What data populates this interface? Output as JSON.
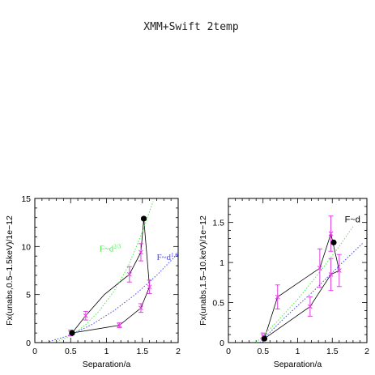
{
  "figure_title": "XMM+Swift 2temp",
  "chart_data": [
    {
      "type": "line",
      "xlabel": "Separation/a",
      "ylabel": "Fx(unabs,0.5–1.5keV)/1e−12",
      "xlim": [
        0,
        2
      ],
      "ylim": [
        0,
        15
      ],
      "xticks": [
        "0",
        "0.5",
        "1",
        "1.5",
        "2"
      ],
      "yticks": [
        "0",
        "5",
        "10",
        "15"
      ],
      "ytick_values": [
        0,
        5,
        10,
        15
      ],
      "grid": false,
      "series": [
        {
          "role": "data_path",
          "color": "#000000",
          "x": [
            0.52,
            0.71,
            0.97,
            1.32,
            1.48,
            1.52,
            1.6,
            1.48,
            1.18,
            0.52
          ],
          "y": [
            1.0,
            2.8,
            5.0,
            7.1,
            9.4,
            12.9,
            5.8,
            3.6,
            1.8,
            1.0
          ]
        },
        {
          "role": "error_points",
          "color": "#e040e0",
          "points": [
            {
              "x": 0.5,
              "y": 1.0,
              "err": 0.3
            },
            {
              "x": 0.71,
              "y": 2.8,
              "err": 0.45
            },
            {
              "x": 1.32,
              "y": 7.1,
              "err": 0.8
            },
            {
              "x": 1.48,
              "y": 9.4,
              "err": 0.9
            },
            {
              "x": 1.6,
              "y": 5.8,
              "err": 0.7
            },
            {
              "x": 1.48,
              "y": 3.6,
              "err": 0.45
            },
            {
              "x": 1.18,
              "y": 1.8,
              "err": 0.25
            }
          ]
        },
        {
          "role": "black_points",
          "color": "#000000",
          "points": [
            {
              "x": 0.52,
              "y": 1.0
            },
            {
              "x": 1.52,
              "y": 12.9
            }
          ]
        },
        {
          "name": "F~d^{2/3}",
          "role": "model_curve",
          "color": "#44ee44",
          "style": "dotted",
          "x": [
            0.3,
            0.5,
            0.7,
            0.9,
            1.1,
            1.3,
            1.5,
            1.65
          ],
          "y": [
            0.1,
            0.7,
            1.8,
            3.3,
            5.3,
            7.9,
            11.5,
            14.7
          ]
        },
        {
          "name": "F~d^{1.6}",
          "role": "model_curve",
          "color": "#4444ee",
          "style": "dotted",
          "x": [
            0.2,
            0.5,
            0.8,
            1.1,
            1.4,
            1.7,
            2.0
          ],
          "y": [
            0.1,
            0.8,
            1.9,
            3.3,
            5.0,
            7.0,
            9.3
          ]
        }
      ],
      "annotations": [
        {
          "text": "F~d",
          "sup": "2/3",
          "color": "#44ee44",
          "x": 0.9,
          "y": 9.5
        },
        {
          "text": "F~d",
          "sup": "1.6",
          "color": "#4444ee",
          "x": 1.7,
          "y": 8.6
        }
      ]
    },
    {
      "type": "line",
      "xlabel": "Separation/a",
      "ylabel": "Fx(unabs,1.5–10.keV)/1e−12",
      "xlim": [
        0,
        2
      ],
      "ylim": [
        0,
        1.8
      ],
      "xticks": [
        "0",
        "0.5",
        "1",
        "1.5",
        "2"
      ],
      "yticks": [
        "0",
        "0.5",
        "1",
        "1.5"
      ],
      "ytick_values": [
        0,
        0.5,
        1,
        1.5
      ],
      "grid": false,
      "series": [
        {
          "role": "data_path",
          "color": "#000000",
          "x": [
            0.52,
            0.71,
            1.32,
            1.48,
            1.6,
            1.48,
            1.18,
            0.52,
            0.5,
            0.52
          ],
          "y": [
            0.05,
            0.57,
            0.93,
            1.36,
            0.9,
            0.85,
            0.45,
            0.05,
            0.08,
            0.05
          ]
        },
        {
          "role": "error_points",
          "color": "#e040e0",
          "points": [
            {
              "x": 0.5,
              "y": 0.08,
              "err": 0.04
            },
            {
              "x": 0.71,
              "y": 0.57,
              "err": 0.15
            },
            {
              "x": 1.18,
              "y": 0.45,
              "err": 0.12
            },
            {
              "x": 1.32,
              "y": 0.93,
              "err": 0.24
            },
            {
              "x": 1.48,
              "y": 1.36,
              "err": 0.22
            },
            {
              "x": 1.48,
              "y": 0.85,
              "err": 0.2
            },
            {
              "x": 1.6,
              "y": 0.9,
              "err": 0.2
            }
          ]
        },
        {
          "role": "black_points",
          "color": "#000000",
          "points": [
            {
              "x": 0.52,
              "y": 0.05
            },
            {
              "x": 1.52,
              "y": 1.25
            }
          ]
        },
        {
          "name": "F~d^{2/3}",
          "role": "model_curve",
          "color": "#44ee44",
          "style": "dotted",
          "x": [
            0.4,
            0.7,
            1.0,
            1.3,
            1.6,
            1.8
          ],
          "y": [
            0.0,
            0.26,
            0.54,
            0.86,
            1.2,
            1.45
          ]
        },
        {
          "name": "F~d",
          "role": "model_curve",
          "color": "#4444ee",
          "style": "dotted",
          "x": [
            0.45,
            0.8,
            1.2,
            1.6,
            1.95
          ],
          "y": [
            0.0,
            0.3,
            0.62,
            0.96,
            1.25
          ]
        }
      ],
      "annotations": [
        {
          "text": "F~d",
          "sup": "",
          "color": "#000000",
          "x": 1.68,
          "y": 1.5
        }
      ]
    }
  ]
}
